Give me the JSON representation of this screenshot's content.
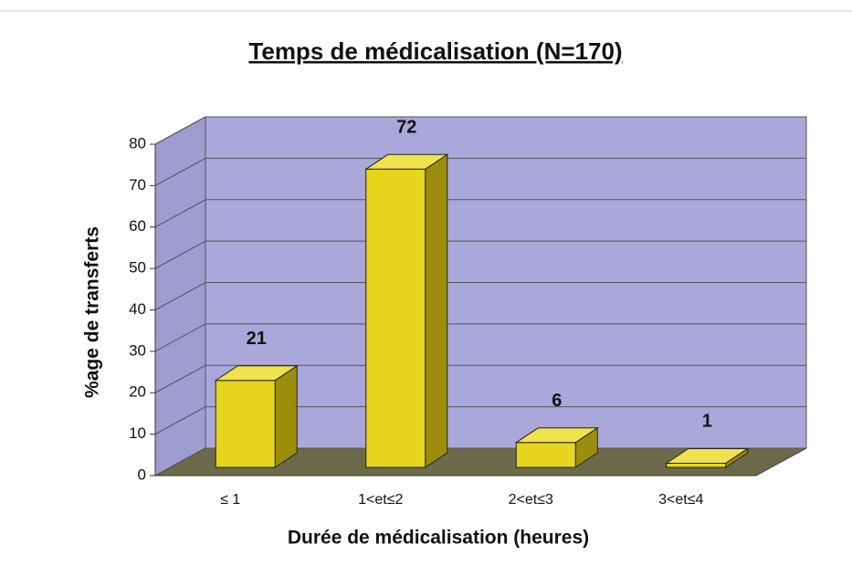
{
  "chart_data": {
    "type": "bar3d",
    "title": "Temps de médicalisation (N=170)",
    "x_label": "Durée de médicalisation (heures)",
    "y_label": "%age de transferts",
    "categories": [
      "≤ 1",
      "1<et≤2",
      "2<et≤3",
      "3<et≤4"
    ],
    "values": [
      21,
      72,
      6,
      1
    ],
    "color": "#e6d51c",
    "ylim": [
      0,
      80
    ],
    "yticks": [
      0,
      10,
      20,
      30,
      40,
      50,
      60,
      70,
      80
    ],
    "grid": true
  }
}
